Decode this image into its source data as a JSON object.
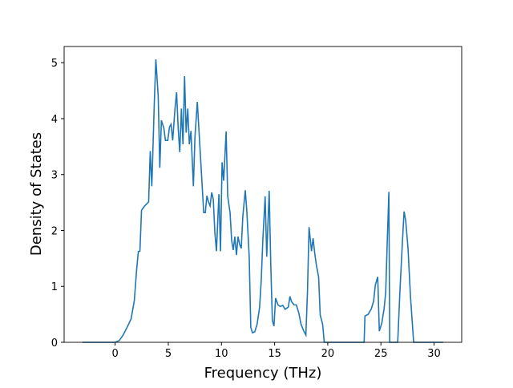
{
  "chart_data": {
    "type": "line",
    "xlabel": "Frequency (THz)",
    "ylabel": "Density of States",
    "xlim": [
      -4.8,
      32.6
    ],
    "ylim": [
      0,
      5.29
    ],
    "xticks": [
      0,
      5,
      10,
      15,
      20,
      25,
      30
    ],
    "yticks": [
      0,
      1,
      2,
      3,
      4,
      5
    ],
    "series": [
      {
        "color": "#1f77b4",
        "x": [
          -3.08,
          0,
          0.38,
          0.75,
          1.13,
          1.5,
          1.8,
          2.03,
          2.18,
          2.33,
          2.48,
          2.78,
          3.15,
          3.3,
          3.45,
          3.68,
          3.83,
          4.05,
          4.2,
          4.35,
          4.58,
          4.73,
          4.95,
          5.11,
          5.26,
          5.41,
          5.63,
          5.78,
          5.93,
          6.08,
          6.23,
          6.38,
          6.53,
          6.68,
          6.83,
          6.98,
          7.13,
          7.36,
          7.51,
          7.73,
          7.96,
          8.18,
          8.33,
          8.48,
          8.63,
          8.78,
          8.93,
          9.08,
          9.23,
          9.38,
          9.53,
          9.76,
          9.91,
          10.06,
          10.21,
          10.44,
          10.59,
          10.81,
          10.96,
          11.11,
          11.26,
          11.41,
          11.56,
          11.71,
          11.86,
          12.01,
          12.24,
          12.39,
          12.61,
          12.76,
          12.91,
          13.14,
          13.36,
          13.59,
          13.74,
          13.89,
          14.11,
          14.26,
          14.49,
          14.64,
          14.79,
          14.94,
          15.09,
          15.32,
          15.54,
          15.77,
          15.99,
          16.29,
          16.44,
          16.59,
          16.82,
          17.04,
          17.27,
          17.49,
          17.72,
          17.94,
          18.09,
          18.24,
          18.47,
          18.62,
          18.77,
          18.92,
          19.14,
          19.29,
          19.52,
          19.67,
          23.42,
          23.5,
          23.8,
          24.1,
          24.32,
          24.47,
          24.7,
          24.85,
          25.08,
          25.3,
          25.45,
          25.6,
          25.75,
          25.83,
          26.58,
          26.8,
          27.03,
          27.18,
          27.33,
          27.55,
          27.78,
          28.08,
          30.86
        ],
        "values": [
          0,
          0,
          0.03,
          0.13,
          0.27,
          0.42,
          0.74,
          1.32,
          1.62,
          1.63,
          2.36,
          2.44,
          2.51,
          3.42,
          2.79,
          4.26,
          5.06,
          4.4,
          3.12,
          3.97,
          3.83,
          3.61,
          3.61,
          3.85,
          3.9,
          3.61,
          4.18,
          4.47,
          3.83,
          3.4,
          4.18,
          3.54,
          4.76,
          3.75,
          4.18,
          3.54,
          3.78,
          2.79,
          3.68,
          4.3,
          3.54,
          2.82,
          2.32,
          2.32,
          2.62,
          2.51,
          2.44,
          2.68,
          2.56,
          1.96,
          1.63,
          2.65,
          1.63,
          3.22,
          2.89,
          3.77,
          2.61,
          2.32,
          1.82,
          1.65,
          1.89,
          1.56,
          1.89,
          1.75,
          1.68,
          2.25,
          2.72,
          2.34,
          1.53,
          0.27,
          0.17,
          0.19,
          0.33,
          0.63,
          1.1,
          1.82,
          2.61,
          1.53,
          2.71,
          1.39,
          0.39,
          0.29,
          0.79,
          0.67,
          0.64,
          0.66,
          0.59,
          0.63,
          0.82,
          0.73,
          0.67,
          0.67,
          0.53,
          0.32,
          0.21,
          0.13,
          0.89,
          2.06,
          1.63,
          1.86,
          1.6,
          1.39,
          1.17,
          0.49,
          0.32,
          0,
          0,
          0.47,
          0.5,
          0.6,
          0.74,
          1.02,
          1.17,
          0.2,
          0.34,
          0.6,
          0.89,
          1.82,
          2.69,
          0,
          0,
          0.96,
          1.82,
          2.34,
          2.18,
          1.68,
          0.82,
          0,
          0
        ]
      }
    ]
  }
}
